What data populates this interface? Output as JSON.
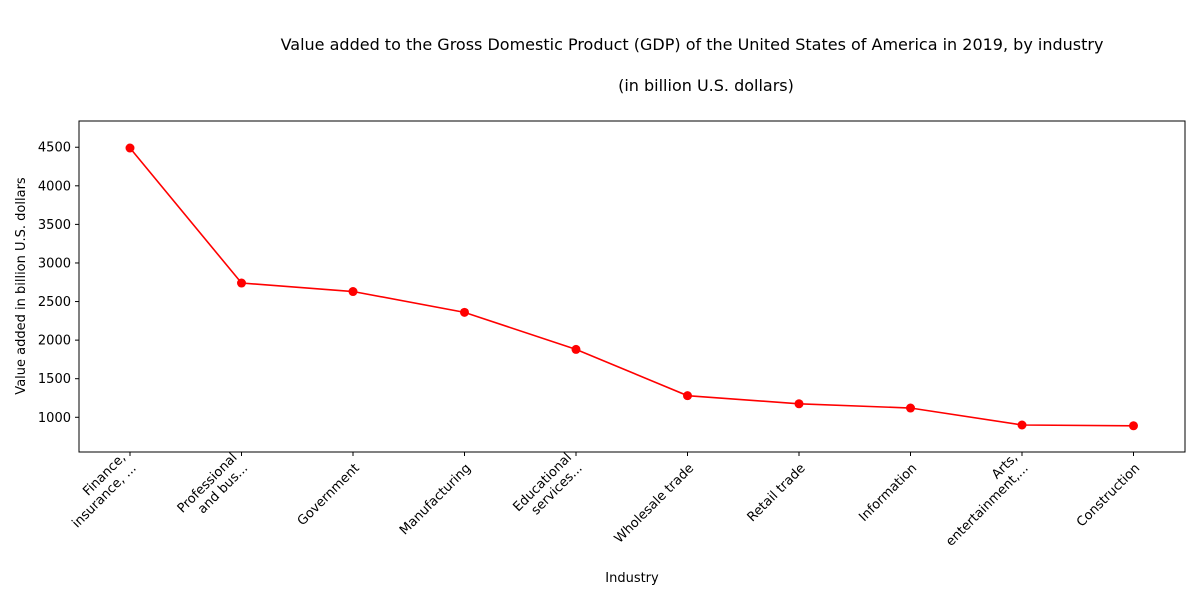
{
  "chart_data": {
    "type": "line",
    "title": "Value added to the Gross Domestic Product (GDP) of the United States of America in 2019, by industry",
    "subtitle": "(in billion U.S. dollars)",
    "xlabel": "Industry",
    "ylabel": "Value added in billion U.S. dollars",
    "categories": [
      [
        "Finance,",
        "insurance, ..."
      ],
      [
        "Professional",
        "and bus..."
      ],
      [
        "Government"
      ],
      [
        "Manufacturing"
      ],
      [
        "Educational",
        "services..."
      ],
      [
        "Wholesale trade"
      ],
      [
        "Retail trade"
      ],
      [
        "Information"
      ],
      [
        "Arts,",
        "entertainment,..."
      ],
      [
        "Construction"
      ]
    ],
    "values": [
      4490,
      2740,
      2630,
      2360,
      1880,
      1280,
      1175,
      1120,
      900,
      890
    ],
    "ylim": [
      550,
      4840
    ],
    "yticks": [
      1000,
      1500,
      2000,
      2500,
      3000,
      3500,
      4000,
      4500
    ],
    "grid": false,
    "colors": {
      "series": "#ff0000"
    }
  }
}
